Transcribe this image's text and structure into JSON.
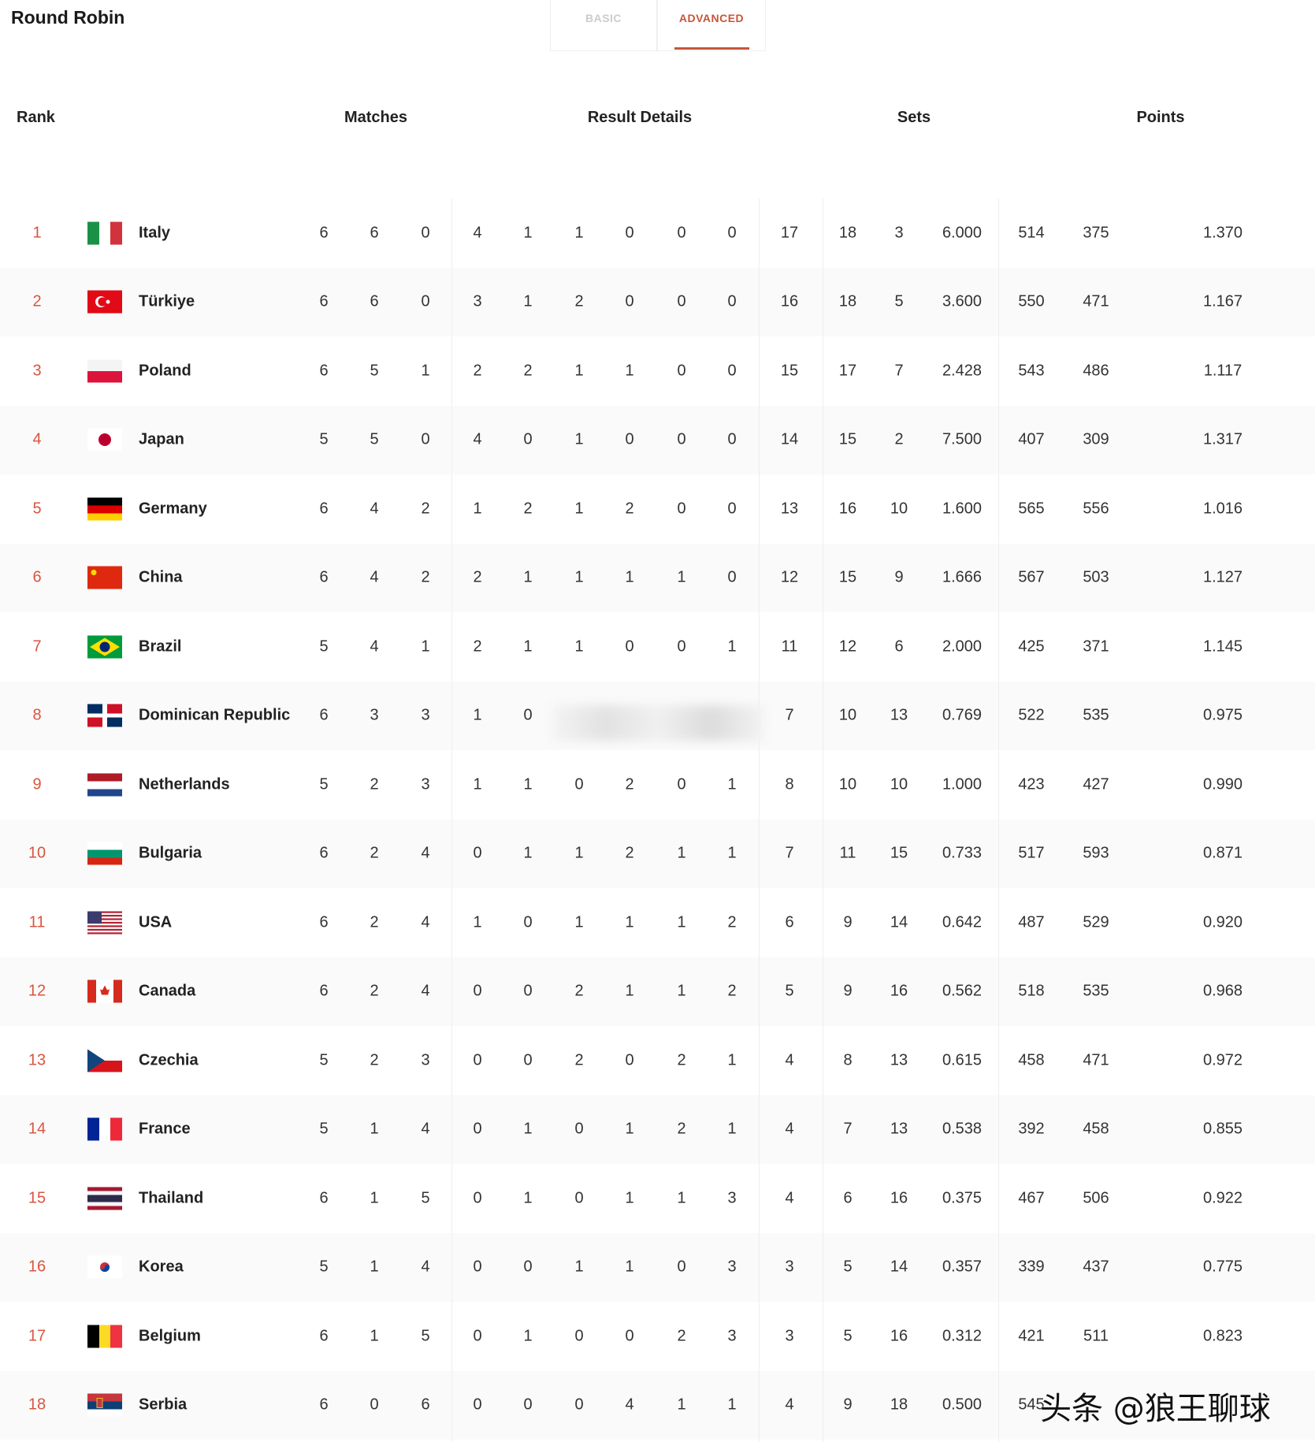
{
  "title": "Round Robin",
  "tabs": [
    {
      "label": "BASIC",
      "active": false
    },
    {
      "label": "ADVANCED",
      "active": true
    }
  ],
  "headers": {
    "rank": "Rank",
    "matches": "Matches",
    "result_details": "Result Details",
    "sets": "Sets",
    "points": "Points"
  },
  "colors": {
    "accent": "#c9553a",
    "rank": "#d9553f",
    "alt_row": "#fafafa"
  },
  "rows": [
    {
      "rank": "1",
      "team": "Italy",
      "flag": "italy",
      "v": [
        "6",
        "6",
        "0",
        "4",
        "1",
        "1",
        "0",
        "0",
        "0",
        "17",
        "18",
        "3",
        "6.000",
        "514",
        "375",
        "1.370"
      ]
    },
    {
      "rank": "2",
      "team": "Türkiye",
      "flag": "turkiye",
      "v": [
        "6",
        "6",
        "0",
        "3",
        "1",
        "2",
        "0",
        "0",
        "0",
        "16",
        "18",
        "5",
        "3.600",
        "550",
        "471",
        "1.167"
      ]
    },
    {
      "rank": "3",
      "team": "Poland",
      "flag": "poland",
      "v": [
        "6",
        "5",
        "1",
        "2",
        "2",
        "1",
        "1",
        "0",
        "0",
        "15",
        "17",
        "7",
        "2.428",
        "543",
        "486",
        "1.117"
      ]
    },
    {
      "rank": "4",
      "team": "Japan",
      "flag": "japan",
      "v": [
        "5",
        "5",
        "0",
        "4",
        "0",
        "1",
        "0",
        "0",
        "0",
        "14",
        "15",
        "2",
        "7.500",
        "407",
        "309",
        "1.317"
      ]
    },
    {
      "rank": "5",
      "team": "Germany",
      "flag": "germany",
      "v": [
        "6",
        "4",
        "2",
        "1",
        "2",
        "1",
        "2",
        "0",
        "0",
        "13",
        "16",
        "10",
        "1.600",
        "565",
        "556",
        "1.016"
      ]
    },
    {
      "rank": "6",
      "team": "China",
      "flag": "china",
      "v": [
        "6",
        "4",
        "2",
        "2",
        "1",
        "1",
        "1",
        "1",
        "0",
        "12",
        "15",
        "9",
        "1.666",
        "567",
        "503",
        "1.127"
      ]
    },
    {
      "rank": "7",
      "team": "Brazil",
      "flag": "brazil",
      "v": [
        "5",
        "4",
        "1",
        "2",
        "1",
        "1",
        "0",
        "0",
        "1",
        "11",
        "12",
        "6",
        "2.000",
        "425",
        "371",
        "1.145"
      ]
    },
    {
      "rank": "8",
      "team": "Dominican Republic",
      "flag": "dominican-republic",
      "v": [
        "6",
        "3",
        "3",
        "1",
        "0",
        "",
        "",
        "",
        "",
        "7",
        "10",
        "13",
        "0.769",
        "522",
        "535",
        "0.975"
      ]
    },
    {
      "rank": "9",
      "team": "Netherlands",
      "flag": "netherlands",
      "v": [
        "5",
        "2",
        "3",
        "1",
        "1",
        "0",
        "2",
        "0",
        "1",
        "8",
        "10",
        "10",
        "1.000",
        "423",
        "427",
        "0.990"
      ]
    },
    {
      "rank": "10",
      "team": "Bulgaria",
      "flag": "bulgaria",
      "v": [
        "6",
        "2",
        "4",
        "0",
        "1",
        "1",
        "2",
        "1",
        "1",
        "7",
        "11",
        "15",
        "0.733",
        "517",
        "593",
        "0.871"
      ]
    },
    {
      "rank": "11",
      "team": "USA",
      "flag": "usa",
      "v": [
        "6",
        "2",
        "4",
        "1",
        "0",
        "1",
        "1",
        "1",
        "2",
        "6",
        "9",
        "14",
        "0.642",
        "487",
        "529",
        "0.920"
      ]
    },
    {
      "rank": "12",
      "team": "Canada",
      "flag": "canada",
      "v": [
        "6",
        "2",
        "4",
        "0",
        "0",
        "2",
        "1",
        "1",
        "2",
        "5",
        "9",
        "16",
        "0.562",
        "518",
        "535",
        "0.968"
      ]
    },
    {
      "rank": "13",
      "team": "Czechia",
      "flag": "czechia",
      "v": [
        "5",
        "2",
        "3",
        "0",
        "0",
        "2",
        "0",
        "2",
        "1",
        "4",
        "8",
        "13",
        "0.615",
        "458",
        "471",
        "0.972"
      ]
    },
    {
      "rank": "14",
      "team": "France",
      "flag": "france",
      "v": [
        "5",
        "1",
        "4",
        "0",
        "1",
        "0",
        "1",
        "2",
        "1",
        "4",
        "7",
        "13",
        "0.538",
        "392",
        "458",
        "0.855"
      ]
    },
    {
      "rank": "15",
      "team": "Thailand",
      "flag": "thailand",
      "v": [
        "6",
        "1",
        "5",
        "0",
        "1",
        "0",
        "1",
        "1",
        "3",
        "4",
        "6",
        "16",
        "0.375",
        "467",
        "506",
        "0.922"
      ]
    },
    {
      "rank": "16",
      "team": "Korea",
      "flag": "korea",
      "v": [
        "5",
        "1",
        "4",
        "0",
        "0",
        "1",
        "1",
        "0",
        "3",
        "3",
        "5",
        "14",
        "0.357",
        "339",
        "437",
        "0.775"
      ]
    },
    {
      "rank": "17",
      "team": "Belgium",
      "flag": "belgium",
      "v": [
        "6",
        "1",
        "5",
        "0",
        "1",
        "0",
        "0",
        "2",
        "3",
        "3",
        "5",
        "16",
        "0.312",
        "421",
        "511",
        "0.823"
      ]
    },
    {
      "rank": "18",
      "team": "Serbia",
      "flag": "serbia",
      "v": [
        "6",
        "0",
        "6",
        "0",
        "0",
        "0",
        "4",
        "1",
        "1",
        "4",
        "9",
        "18",
        "0.500",
        "545",
        "",
        ""
      ]
    }
  ],
  "watermark": "头条 @狼王聊球"
}
